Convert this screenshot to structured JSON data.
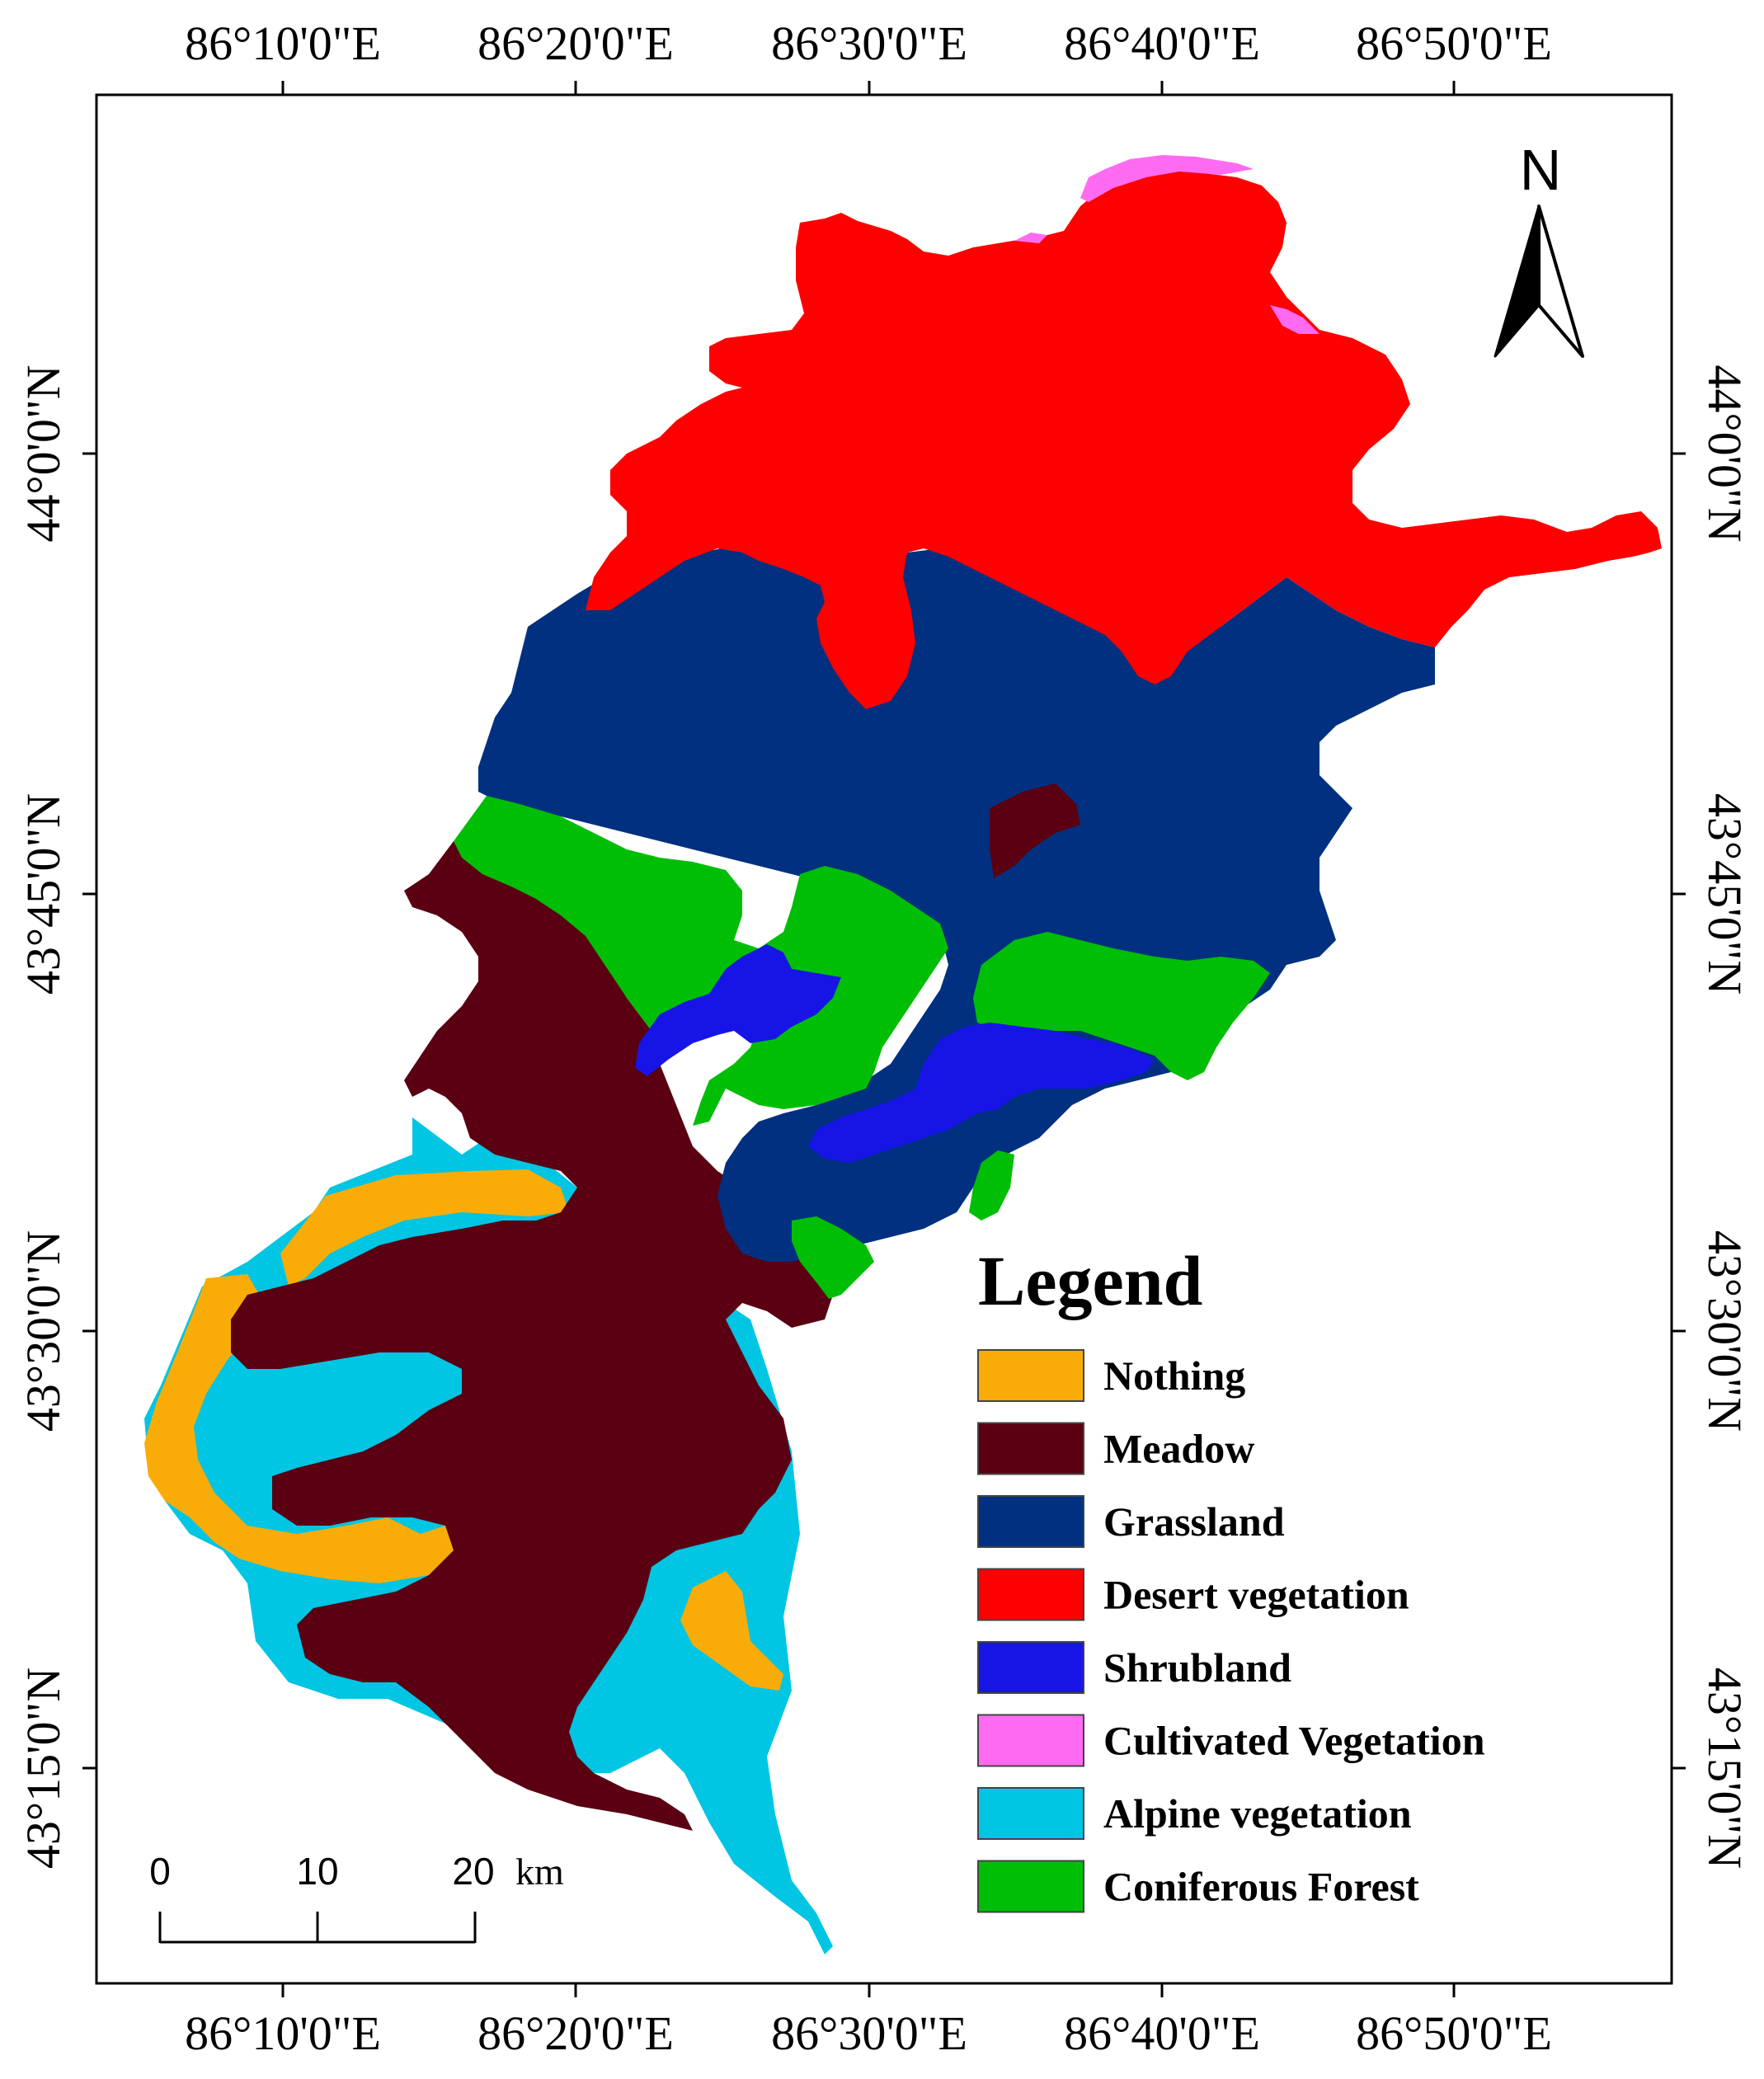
{
  "map": {
    "lon_ticks": [
      "86°10'0\"E",
      "86°20'0\"E",
      "86°30'0\"E",
      "86°40'0\"E",
      "86°50'0\"E"
    ],
    "lat_ticks": [
      "44°0'0\"N",
      "43°45'0\"N",
      "43°30'0\"N",
      "43°15'0\"N"
    ]
  },
  "north_arrow": {
    "label": "N"
  },
  "scale_bar": {
    "labels": [
      "0",
      "10",
      "20"
    ],
    "unit": "km"
  },
  "legend": {
    "title": "Legend",
    "items": [
      {
        "label": "Nothing",
        "color": "#F9AC08"
      },
      {
        "label": "Meadow",
        "color": "#5A0012"
      },
      {
        "label": "Grassland",
        "color": "#00307F"
      },
      {
        "label": "Desert vegetation",
        "color": "#FE0000"
      },
      {
        "label": "Shrubland",
        "color": "#1715E6"
      },
      {
        "label": "Cultivated Vegetation",
        "color": "#FF6BF0"
      },
      {
        "label": "Alpine vegetation",
        "color": "#00C5E3"
      },
      {
        "label": "Coniferous Forest",
        "color": "#00BE05"
      }
    ]
  }
}
